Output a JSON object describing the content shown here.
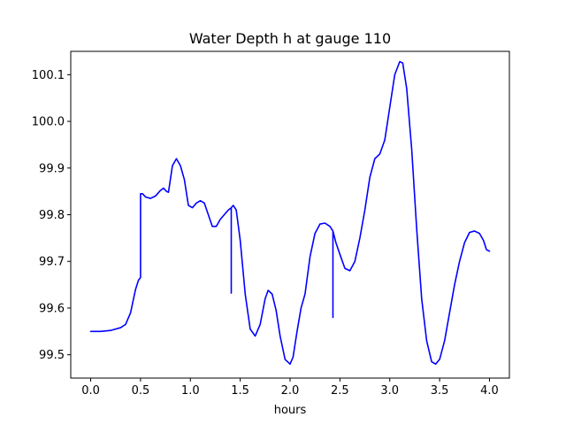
{
  "chart_data": {
    "type": "line",
    "title": "Water Depth h at gauge 110",
    "xlabel": "hours",
    "ylabel": "",
    "xlim": [
      -0.2,
      4.2
    ],
    "ylim": [
      99.45,
      100.15
    ],
    "xticks": [
      0.0,
      0.5,
      1.0,
      1.5,
      2.0,
      2.5,
      3.0,
      3.5,
      4.0
    ],
    "xtick_labels": [
      "0.0",
      "0.5",
      "1.0",
      "1.5",
      "2.0",
      "2.5",
      "3.0",
      "3.5",
      "4.0"
    ],
    "yticks": [
      99.5,
      99.6,
      99.7,
      99.8,
      99.9,
      100.0,
      100.1
    ],
    "ytick_labels": [
      "99.5",
      "99.6",
      "99.7",
      "99.8",
      "99.9",
      "100.0",
      "100.1"
    ],
    "grid": false,
    "series": [
      {
        "color": "#0000ff",
        "x": [
          0.0,
          0.1,
          0.2,
          0.3,
          0.35,
          0.4,
          0.45,
          0.48,
          0.5,
          0.5,
          0.52,
          0.55,
          0.6,
          0.65,
          0.7,
          0.73,
          0.76,
          0.78,
          0.82,
          0.86,
          0.9,
          0.94,
          0.98,
          1.02,
          1.06,
          1.1,
          1.14,
          1.18,
          1.22,
          1.26,
          1.3,
          1.34,
          1.38,
          1.41,
          1.41,
          1.41,
          1.43,
          1.46,
          1.5,
          1.55,
          1.6,
          1.65,
          1.7,
          1.75,
          1.78,
          1.82,
          1.86,
          1.9,
          1.95,
          2.0,
          2.03,
          2.07,
          2.11,
          2.15,
          2.2,
          2.25,
          2.3,
          2.35,
          2.4,
          2.43,
          2.43,
          2.43,
          2.46,
          2.5,
          2.55,
          2.6,
          2.65,
          2.7,
          2.75,
          2.8,
          2.85,
          2.9,
          2.95,
          3.0,
          3.05,
          3.1,
          3.13,
          3.17,
          3.22,
          3.27,
          3.32,
          3.37,
          3.42,
          3.46,
          3.5,
          3.55,
          3.6,
          3.65,
          3.7,
          3.75,
          3.8,
          3.85,
          3.9,
          3.94,
          3.97,
          4.0
        ],
        "y": [
          99.55,
          99.55,
          99.552,
          99.558,
          99.565,
          99.59,
          99.64,
          99.66,
          99.665,
          99.845,
          99.845,
          99.838,
          99.835,
          99.84,
          99.852,
          99.857,
          99.85,
          99.848,
          99.905,
          99.92,
          99.905,
          99.875,
          99.82,
          99.815,
          99.825,
          99.83,
          99.825,
          99.8,
          99.775,
          99.775,
          99.79,
          99.8,
          99.81,
          99.815,
          99.632,
          99.815,
          99.82,
          99.81,
          99.745,
          99.63,
          99.555,
          99.54,
          99.565,
          99.62,
          99.638,
          99.63,
          99.595,
          99.54,
          99.49,
          99.48,
          99.495,
          99.55,
          99.6,
          99.63,
          99.71,
          99.76,
          99.78,
          99.782,
          99.775,
          99.765,
          99.58,
          99.765,
          99.74,
          99.715,
          99.685,
          99.68,
          99.7,
          99.75,
          99.81,
          99.88,
          99.92,
          99.93,
          99.96,
          100.03,
          100.1,
          100.128,
          100.125,
          100.07,
          99.94,
          99.77,
          99.62,
          99.53,
          99.485,
          99.48,
          99.49,
          99.53,
          99.59,
          99.65,
          99.7,
          99.74,
          99.762,
          99.765,
          99.76,
          99.745,
          99.725,
          99.722
        ]
      }
    ]
  }
}
